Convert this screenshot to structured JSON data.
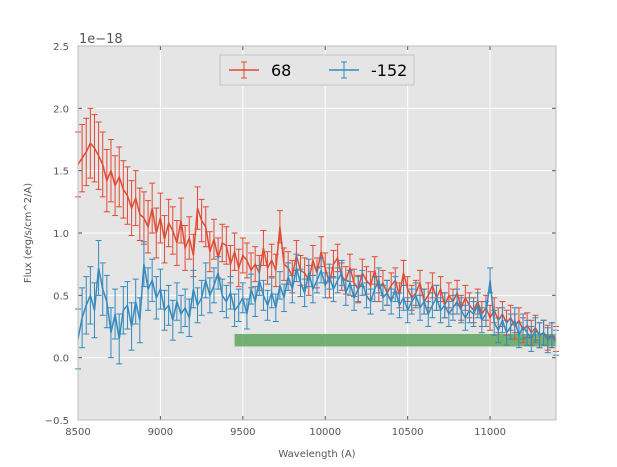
{
  "chart_data": {
    "type": "line",
    "title": "",
    "xlabel": "Wavelength (A)",
    "ylabel": "Flux (erg/s/cm^2/A)",
    "y_offset_label": "1e−18",
    "xlim": [
      8500,
      11400
    ],
    "ylim": [
      -0.5,
      2.5
    ],
    "grid": true,
    "legend_position": "upper center",
    "x_ticks": [
      8500,
      9000,
      9500,
      10000,
      10500,
      11000
    ],
    "x_tick_labels": [
      "8500",
      "9000",
      "9500",
      "10000",
      "10500",
      "11000"
    ],
    "y_ticks": [
      -0.5,
      0.0,
      0.5,
      1.0,
      1.5,
      2.0,
      2.5
    ],
    "y_tick_labels": [
      "−0.5",
      "0.0",
      "0.5",
      "1.0",
      "1.5",
      "2.0",
      "2.5"
    ],
    "series": [
      {
        "name": "68",
        "color": "#e24a33",
        "x": [
          8500,
          8525,
          8550,
          8575,
          8600,
          8625,
          8650,
          8675,
          8700,
          8725,
          8750,
          8775,
          8800,
          8825,
          8850,
          8875,
          8900,
          8925,
          8950,
          8975,
          9000,
          9025,
          9050,
          9075,
          9100,
          9125,
          9150,
          9175,
          9200,
          9225,
          9250,
          9275,
          9300,
          9325,
          9350,
          9375,
          9400,
          9425,
          9450,
          9475,
          9500,
          9525,
          9550,
          9575,
          9600,
          9625,
          9650,
          9675,
          9700,
          9725,
          9750,
          9775,
          9800,
          9825,
          9850,
          9875,
          9900,
          9925,
          9950,
          9975,
          10000,
          10025,
          10050,
          10075,
          10100,
          10125,
          10150,
          10175,
          10200,
          10225,
          10250,
          10275,
          10300,
          10325,
          10350,
          10375,
          10400,
          10425,
          10450,
          10475,
          10500,
          10525,
          10550,
          10575,
          10600,
          10625,
          10650,
          10675,
          10700,
          10725,
          10750,
          10775,
          10800,
          10825,
          10850,
          10875,
          10900,
          10925,
          10950,
          10975,
          11000,
          11025,
          11050,
          11075,
          11100,
          11125,
          11150,
          11175,
          11200,
          11225,
          11250,
          11275,
          11300,
          11325,
          11350,
          11375,
          11400
        ],
        "y": [
          1.55,
          1.6,
          1.65,
          1.72,
          1.68,
          1.62,
          1.55,
          1.42,
          1.5,
          1.38,
          1.45,
          1.35,
          1.3,
          1.2,
          1.28,
          1.15,
          1.12,
          1.05,
          1.2,
          1.0,
          1.12,
          0.95,
          1.08,
          1.02,
          0.92,
          1.1,
          0.88,
          0.96,
          0.82,
          1.2,
          1.1,
          1.05,
          0.85,
          0.95,
          0.8,
          0.92,
          0.9,
          0.75,
          0.85,
          0.72,
          0.82,
          0.78,
          0.7,
          0.75,
          0.68,
          0.88,
          0.72,
          0.78,
          0.7,
          1.05,
          0.75,
          0.72,
          0.65,
          0.82,
          0.7,
          0.68,
          0.62,
          0.78,
          0.68,
          0.85,
          0.72,
          0.6,
          0.75,
          0.8,
          0.65,
          0.62,
          0.72,
          0.6,
          0.55,
          0.68,
          0.62,
          0.58,
          0.7,
          0.55,
          0.6,
          0.52,
          0.58,
          0.62,
          0.5,
          0.68,
          0.55,
          0.48,
          0.52,
          0.6,
          0.45,
          0.5,
          0.58,
          0.48,
          0.55,
          0.42,
          0.5,
          0.45,
          0.52,
          0.4,
          0.48,
          0.42,
          0.38,
          0.45,
          0.35,
          0.4,
          0.32,
          0.38,
          0.3,
          0.35,
          0.28,
          0.32,
          0.25,
          0.3,
          0.22,
          0.26,
          0.2,
          0.24,
          0.18,
          0.2,
          0.16,
          0.18,
          0.15
        ],
        "yerr": [
          0.26,
          0.27,
          0.27,
          0.28,
          0.27,
          0.27,
          0.26,
          0.25,
          0.25,
          0.24,
          0.24,
          0.23,
          0.23,
          0.22,
          0.22,
          0.21,
          0.21,
          0.21,
          0.2,
          0.2,
          0.2,
          0.19,
          0.19,
          0.19,
          0.18,
          0.18,
          0.18,
          0.17,
          0.17,
          0.17,
          0.17,
          0.16,
          0.16,
          0.16,
          0.16,
          0.15,
          0.15,
          0.15,
          0.15,
          0.15,
          0.14,
          0.14,
          0.14,
          0.14,
          0.14,
          0.14,
          0.13,
          0.13,
          0.13,
          0.13,
          0.13,
          0.13,
          0.13,
          0.12,
          0.12,
          0.12,
          0.12,
          0.12,
          0.12,
          0.12,
          0.12,
          0.12,
          0.11,
          0.11,
          0.11,
          0.11,
          0.11,
          0.11,
          0.11,
          0.11,
          0.11,
          0.11,
          0.11,
          0.1,
          0.1,
          0.1,
          0.1,
          0.1,
          0.1,
          0.1,
          0.1,
          0.1,
          0.1,
          0.1,
          0.1,
          0.1,
          0.1,
          0.1,
          0.1,
          0.1,
          0.1,
          0.1,
          0.1,
          0.1,
          0.1,
          0.1,
          0.1,
          0.1,
          0.1,
          0.1,
          0.1,
          0.1,
          0.1,
          0.1,
          0.1,
          0.1,
          0.1,
          0.1,
          0.1,
          0.1,
          0.1,
          0.1,
          0.1,
          0.1,
          0.1,
          0.1,
          0.1
        ]
      },
      {
        "name": "-152",
        "color": "#348abd",
        "x": [
          8500,
          8525,
          8550,
          8575,
          8600,
          8625,
          8650,
          8675,
          8700,
          8725,
          8750,
          8775,
          8800,
          8825,
          8850,
          8875,
          8900,
          8925,
          8950,
          8975,
          9000,
          9025,
          9050,
          9075,
          9100,
          9125,
          9150,
          9175,
          9200,
          9225,
          9250,
          9275,
          9300,
          9325,
          9350,
          9375,
          9400,
          9425,
          9450,
          9475,
          9500,
          9525,
          9550,
          9575,
          9600,
          9625,
          9650,
          9675,
          9700,
          9725,
          9750,
          9775,
          9800,
          9825,
          9850,
          9875,
          9900,
          9925,
          9950,
          9975,
          10000,
          10025,
          10050,
          10075,
          10100,
          10125,
          10150,
          10175,
          10200,
          10225,
          10250,
          10275,
          10300,
          10325,
          10350,
          10375,
          10400,
          10425,
          10450,
          10475,
          10500,
          10525,
          10550,
          10575,
          10600,
          10625,
          10650,
          10675,
          10700,
          10725,
          10750,
          10775,
          10800,
          10825,
          10850,
          10875,
          10900,
          10925,
          10950,
          10975,
          11000,
          11025,
          11050,
          11075,
          11100,
          11125,
          11150,
          11175,
          11200,
          11225,
          11250,
          11275,
          11300,
          11325,
          11350,
          11375,
          11400
        ],
        "y": [
          0.15,
          0.32,
          0.42,
          0.5,
          0.38,
          0.72,
          0.55,
          0.45,
          0.2,
          0.35,
          0.15,
          0.38,
          0.42,
          0.25,
          0.45,
          0.3,
          0.75,
          0.55,
          0.62,
          0.48,
          0.55,
          0.38,
          0.42,
          0.3,
          0.45,
          0.35,
          0.4,
          0.32,
          0.55,
          0.42,
          0.48,
          0.62,
          0.5,
          0.58,
          0.68,
          0.5,
          0.45,
          0.52,
          0.38,
          0.42,
          0.48,
          0.35,
          0.55,
          0.45,
          0.62,
          0.5,
          0.42,
          0.52,
          0.4,
          0.58,
          0.48,
          0.65,
          0.55,
          0.72,
          0.6,
          0.52,
          0.68,
          0.55,
          0.62,
          0.7,
          0.58,
          0.65,
          0.55,
          0.62,
          0.68,
          0.52,
          0.6,
          0.48,
          0.55,
          0.6,
          0.5,
          0.45,
          0.55,
          0.62,
          0.48,
          0.52,
          0.45,
          0.55,
          0.42,
          0.48,
          0.38,
          0.45,
          0.5,
          0.4,
          0.45,
          0.35,
          0.42,
          0.48,
          0.38,
          0.42,
          0.35,
          0.4,
          0.45,
          0.38,
          0.32,
          0.38,
          0.35,
          0.42,
          0.3,
          0.35,
          0.62,
          0.28,
          0.22,
          0.3,
          0.2,
          0.25,
          0.3,
          0.18,
          0.25,
          0.2,
          0.15,
          0.22,
          0.18,
          0.2,
          0.14,
          0.18,
          0.12
        ],
        "yerr": [
          0.24,
          0.24,
          0.23,
          0.23,
          0.22,
          0.22,
          0.21,
          0.21,
          0.2,
          0.2,
          0.2,
          0.19,
          0.19,
          0.19,
          0.18,
          0.18,
          0.18,
          0.17,
          0.17,
          0.17,
          0.16,
          0.16,
          0.16,
          0.16,
          0.15,
          0.15,
          0.15,
          0.15,
          0.15,
          0.14,
          0.14,
          0.14,
          0.14,
          0.14,
          0.13,
          0.13,
          0.13,
          0.13,
          0.13,
          0.13,
          0.12,
          0.12,
          0.12,
          0.12,
          0.12,
          0.12,
          0.12,
          0.12,
          0.11,
          0.11,
          0.11,
          0.11,
          0.11,
          0.11,
          0.11,
          0.11,
          0.11,
          0.11,
          0.1,
          0.1,
          0.1,
          0.1,
          0.1,
          0.1,
          0.1,
          0.1,
          0.1,
          0.1,
          0.1,
          0.1,
          0.1,
          0.1,
          0.1,
          0.1,
          0.1,
          0.1,
          0.1,
          0.1,
          0.1,
          0.1,
          0.1,
          0.1,
          0.1,
          0.1,
          0.1,
          0.1,
          0.1,
          0.1,
          0.1,
          0.1,
          0.1,
          0.1,
          0.1,
          0.1,
          0.1,
          0.1,
          0.1,
          0.1,
          0.1,
          0.1,
          0.1,
          0.1,
          0.1,
          0.1,
          0.1,
          0.1,
          0.1,
          0.1,
          0.1,
          0.1,
          0.1,
          0.1,
          0.1,
          0.1,
          0.1,
          0.1,
          0.1
        ]
      }
    ],
    "band": {
      "x_start": 9450,
      "x_end": 11400,
      "y_low": 0.09,
      "y_high": 0.19,
      "color": "#4a9e48"
    }
  }
}
